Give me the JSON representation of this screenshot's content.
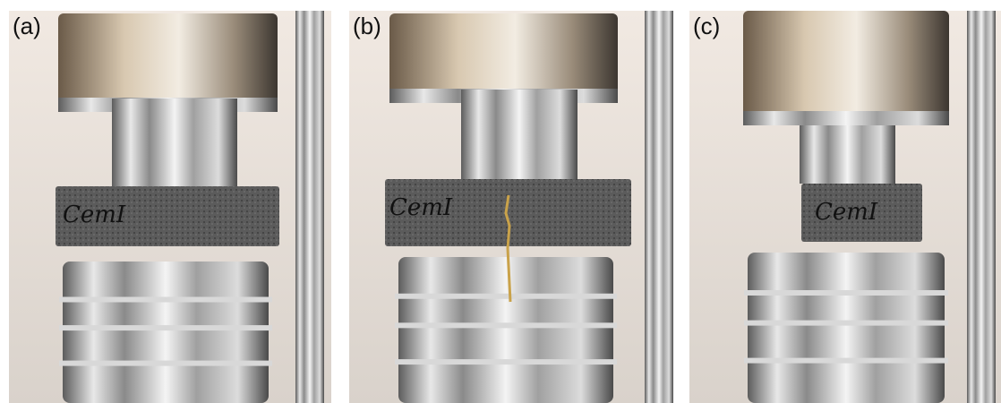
{
  "panels": [
    {
      "label": "(a)",
      "specimen": "CemI"
    },
    {
      "label": "(b)",
      "specimen": "CemI"
    },
    {
      "label": "(c)",
      "specimen": "CemI"
    }
  ]
}
